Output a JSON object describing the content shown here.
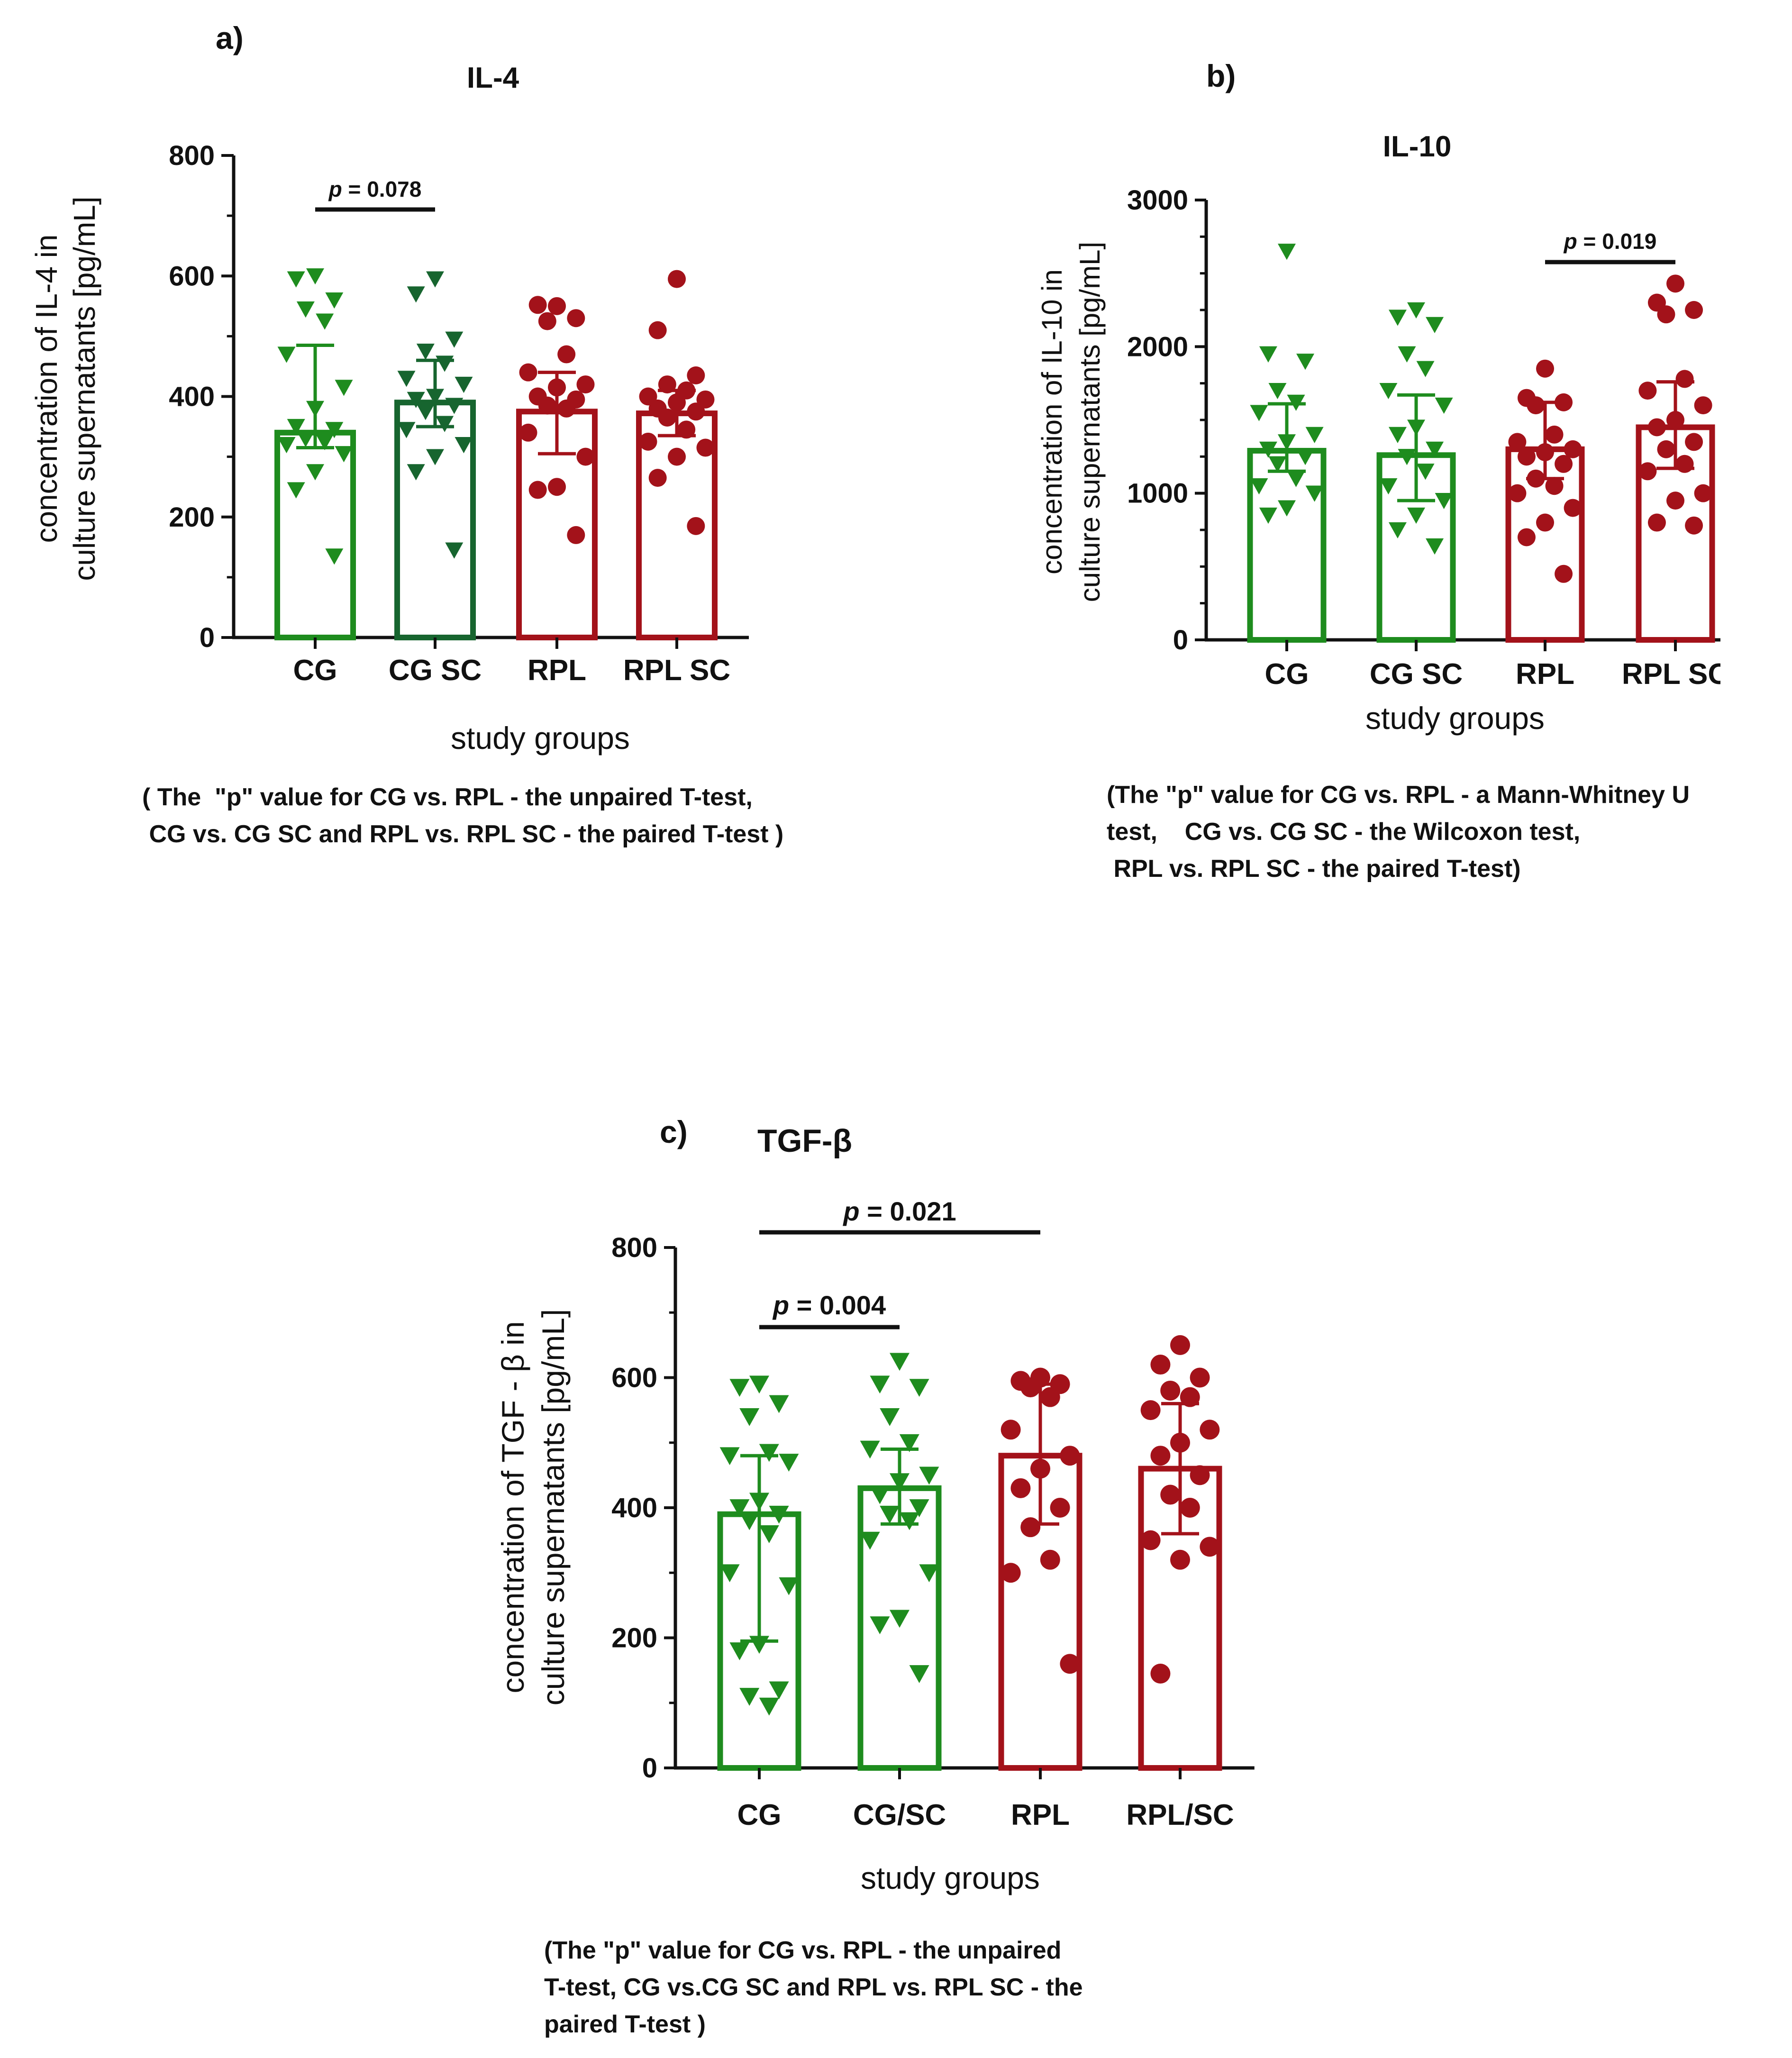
{
  "colors": {
    "green": "#1e8c1e",
    "dark_green": "#17652f",
    "red": "#a3121a",
    "axis": "#111111"
  },
  "panels": {
    "a": {
      "label": "a)",
      "note": "( The  \"p\" value for CG vs. RPL - the unpaired T-test,\n CG vs. CG SC and RPL vs. RPL SC - the paired T-test )"
    },
    "b": {
      "label": "b)",
      "note": "(The \"p\" value for CG vs. RPL - a Mann-Whitney U\ntest,    CG vs. CG SC - the Wilcoxon test,\n RPL vs. RPL SC - the paired T-test)"
    },
    "c": {
      "label": "c)",
      "note": "(The \"p\" value for CG vs. RPL - the unpaired\nT-test, CG vs.CG SC and RPL vs. RPL SC - the\npaired T-test )"
    }
  },
  "chart_data": [
    {
      "type": "bar",
      "title": "IL-4",
      "xlabel": "study groups",
      "ylabel": [
        "concentration of IL-4 in",
        "culture supernatants [pg/mL]"
      ],
      "ylim": [
        0,
        800
      ],
      "yticks": [
        0,
        200,
        400,
        600,
        800
      ],
      "categories": [
        "CG",
        "CG SC",
        "RPL",
        "RPL SC"
      ],
      "values": [
        340,
        390,
        375,
        372
      ],
      "error_low": [
        315,
        350,
        305,
        335
      ],
      "error_high": [
        485,
        460,
        440,
        410
      ],
      "series_colors": [
        "#1e8c1e",
        "#17652f",
        "#a3121a",
        "#a3121a"
      ],
      "markers": [
        "triangle-down",
        "triangle-down",
        "circle",
        "circle"
      ],
      "points": [
        [
          600,
          595,
          560,
          545,
          525,
          470,
          415,
          380,
          350,
          345,
          330,
          325,
          320,
          305,
          275,
          245,
          135
        ],
        [
          595,
          570,
          495,
          475,
          455,
          430,
          420,
          400,
          395,
          385,
          375,
          355,
          345,
          320,
          300,
          275,
          145
        ],
        [
          550,
          552,
          530,
          525,
          470,
          440,
          420,
          415,
          400,
          395,
          385,
          380,
          340,
          300,
          250,
          245,
          170
        ],
        [
          595,
          510,
          435,
          420,
          410,
          400,
          395,
          390,
          380,
          375,
          365,
          345,
          325,
          315,
          300,
          265,
          185
        ]
      ],
      "annotations": [
        {
          "from": 0,
          "to": 1,
          "p": "p",
          "value": " = 0.078"
        }
      ]
    },
    {
      "type": "bar",
      "title": "IL-10",
      "xlabel": "study groups",
      "ylabel": [
        "concentration of IL-10 in",
        "culture supernatants [pg/mL]"
      ],
      "ylim": [
        0,
        3000
      ],
      "yticks": [
        0,
        1000,
        2000,
        3000
      ],
      "categories": [
        "CG",
        "CG SC",
        "RPL",
        "RPL SC"
      ],
      "values": [
        1290,
        1260,
        1300,
        1450
      ],
      "error_low": [
        1150,
        950,
        1100,
        1170
      ],
      "error_high": [
        1610,
        1670,
        1620,
        1760
      ],
      "series_colors": [
        "#1e8c1e",
        "#1e8c1e",
        "#a3121a",
        "#a3121a"
      ],
      "markers": [
        "triangle-down",
        "triangle-down",
        "circle",
        "circle"
      ],
      "points": [
        [
          2650,
          1950,
          1900,
          1700,
          1620,
          1550,
          1400,
          1350,
          1300,
          1250,
          1200,
          1100,
          1050,
          1000,
          900,
          850
        ],
        [
          2250,
          2200,
          2150,
          1950,
          1850,
          1700,
          1600,
          1450,
          1400,
          1300,
          1250,
          1150,
          1050,
          950,
          850,
          750,
          640
        ],
        [
          1850,
          1650,
          1620,
          1600,
          1400,
          1350,
          1300,
          1280,
          1250,
          1200,
          1100,
          1050,
          1000,
          900,
          800,
          700,
          450
        ],
        [
          2430,
          2300,
          2250,
          2220,
          1780,
          1700,
          1600,
          1500,
          1450,
          1350,
          1300,
          1200,
          1150,
          1000,
          950,
          800,
          780
        ]
      ],
      "annotations": [
        {
          "from": 2,
          "to": 3,
          "p": "p",
          "value": " = 0.019"
        }
      ]
    },
    {
      "type": "bar",
      "title": "TGF-β",
      "xlabel": "study groups",
      "ylabel": [
        "concentration of TGF - β in",
        "culture supernatants [pg/mL]"
      ],
      "ylim": [
        0,
        800
      ],
      "yticks": [
        0,
        200,
        400,
        600,
        800
      ],
      "categories": [
        "CG",
        "CG/SC",
        "RPL",
        "RPL/SC"
      ],
      "values": [
        390,
        430,
        480,
        460
      ],
      "error_low": [
        195,
        375,
        375,
        360
      ],
      "error_high": [
        480,
        490,
        590,
        560
      ],
      "series_colors": [
        "#1e8c1e",
        "#1e8c1e",
        "#a3121a",
        "#a3121a"
      ],
      "markers": [
        "triangle-down",
        "triangle-down",
        "circle",
        "circle"
      ],
      "points": [
        [
          590,
          585,
          560,
          540,
          485,
          480,
          470,
          410,
          400,
          390,
          380,
          360,
          300,
          280,
          190,
          180,
          120,
          110,
          95
        ],
        [
          625,
          590,
          585,
          540,
          500,
          490,
          450,
          440,
          420,
          400,
          390,
          380,
          350,
          300,
          230,
          220,
          145
        ],
        [
          600,
          595,
          590,
          585,
          570,
          520,
          480,
          460,
          430,
          400,
          370,
          320,
          300,
          160
        ],
        [
          650,
          620,
          600,
          580,
          570,
          550,
          520,
          500,
          480,
          450,
          420,
          400,
          350,
          340,
          320,
          145
        ]
      ],
      "annotations": [
        {
          "from": 0,
          "to": 2,
          "p": "p",
          "value": " = 0.021"
        },
        {
          "from": 0,
          "to": 1,
          "p": "p",
          "value": " = 0.004"
        }
      ]
    }
  ]
}
